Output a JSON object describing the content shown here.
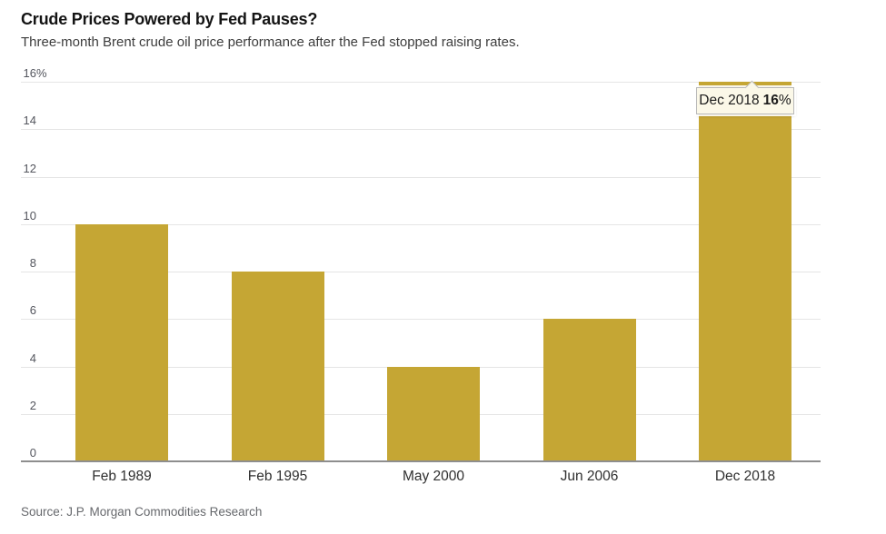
{
  "header": {
    "title": "Crude Prices Powered by Fed Pauses?",
    "subtitle": "Three-month Brent crude oil price performance after the Fed stopped raising rates."
  },
  "footer": {
    "source": "Source: J.P. Morgan Commodities Research"
  },
  "chart_data": {
    "type": "bar",
    "title": "Crude Prices Powered by Fed Pauses?",
    "subtitle": "Three-month Brent crude oil price performance after the Fed stopped raising rates.",
    "categories": [
      "Feb 1989",
      "Feb 1995",
      "May 2000",
      "Jun 2006",
      "Dec 2018"
    ],
    "values": [
      10,
      8,
      4,
      6,
      16
    ],
    "unit": "%",
    "xlabel": "",
    "ylabel": "",
    "ylim": [
      0,
      16
    ],
    "yticks": [
      0,
      2,
      4,
      6,
      8,
      10,
      12,
      14,
      16
    ],
    "ytick_top_suffix": "%",
    "grid": true,
    "legend": "none",
    "bar_color": "#c5a634",
    "tooltip": {
      "label": "Dec 2018",
      "value": "16",
      "suffix": "%",
      "bar_index": 4
    }
  },
  "colors": {
    "bar": "#c5a634",
    "gridline": "#e5e5e5",
    "axis_line": "#8e8e8e",
    "tooltip_bg": "#fbf8e8",
    "tooltip_border": "#b9b9b9",
    "title_text": "#141414",
    "subtitle_text": "#3d3d3d",
    "tick_text": "#54565e",
    "source_text": "#66686c"
  }
}
